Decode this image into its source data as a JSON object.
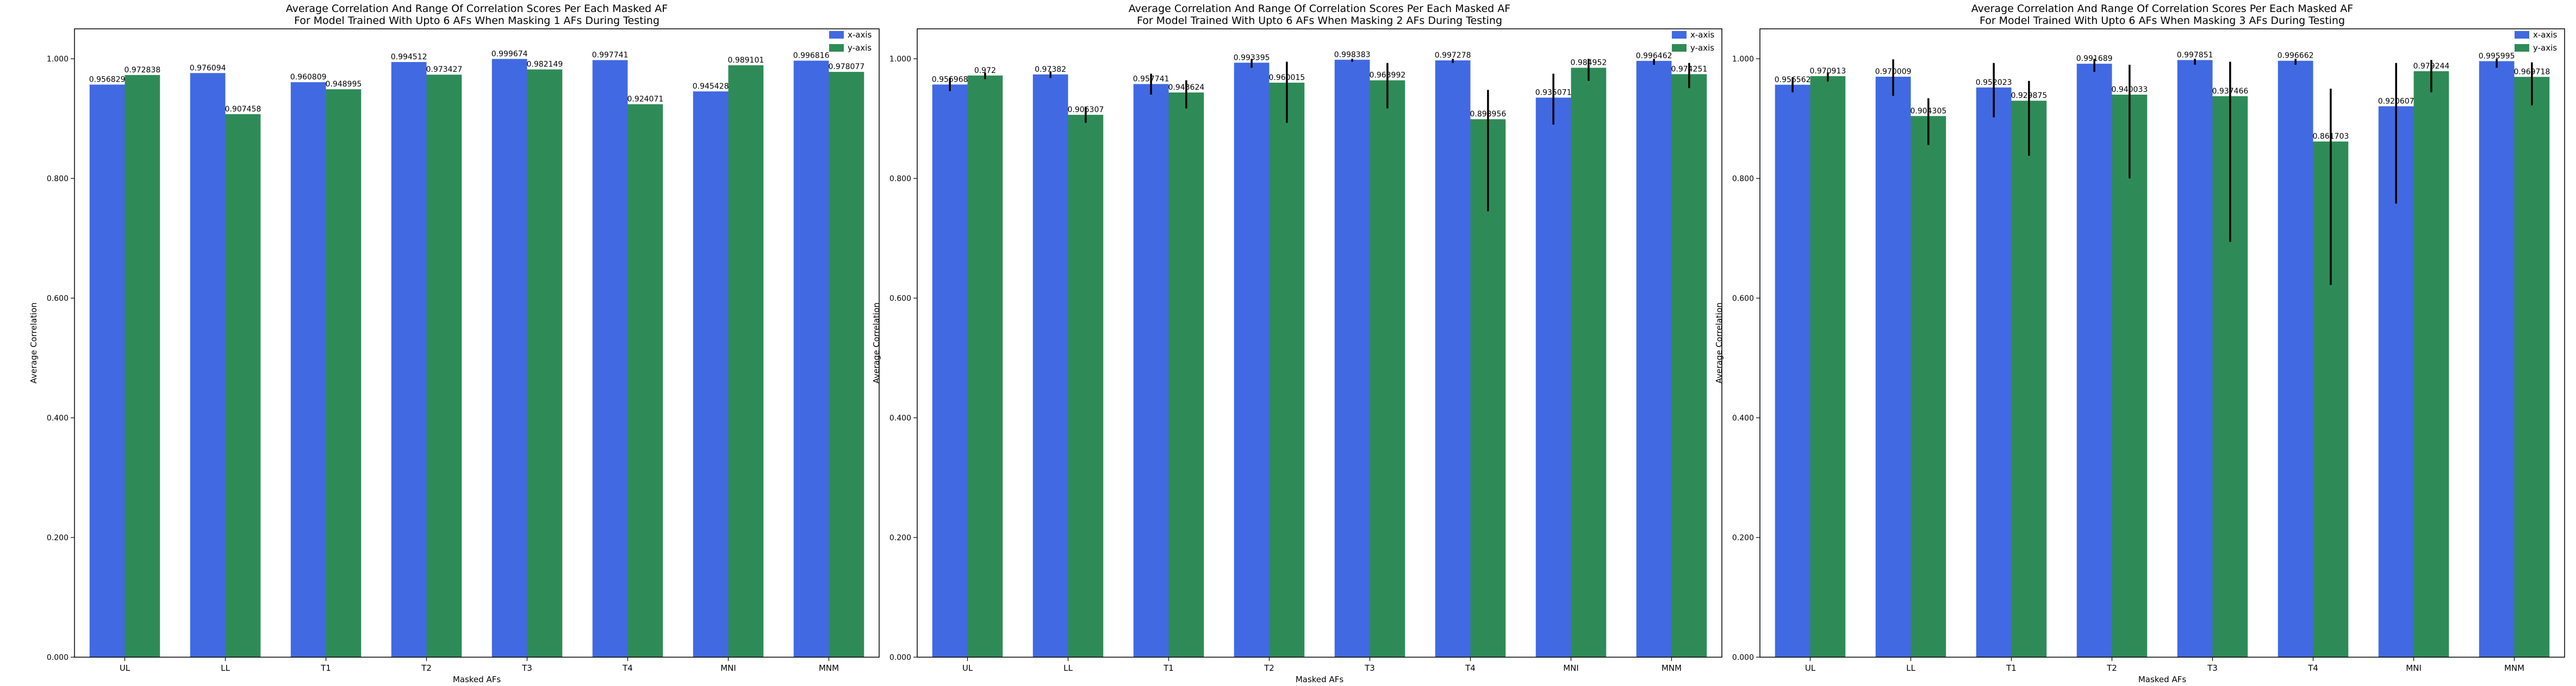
{
  "chart_data": [
    {
      "type": "bar",
      "title_line1": "Average Correlation And Range Of Correlation Scores Per Each Masked AF",
      "title_line2": "For Model Trained With Upto 6 AFs When Masking 1 AFs During Testing",
      "xlabel": "Masked AFs",
      "ylabel": "Average Correlation",
      "ylim": [
        0,
        1.05
      ],
      "yticks": [
        "0.000",
        "0.200",
        "0.400",
        "0.600",
        "0.800",
        "1.000"
      ],
      "ytick_values": [
        0,
        0.2,
        0.4,
        0.6,
        0.8,
        1.0
      ],
      "legend_position": "top-right",
      "categories": [
        "UL",
        "LL",
        "T1",
        "T2",
        "T3",
        "T4",
        "MNI",
        "MNM"
      ],
      "series": [
        {
          "name": "x-axis",
          "color": "#4169e1",
          "values": [
            0.956829,
            0.976094,
            0.960809,
            0.994512,
            0.999674,
            0.997741,
            0.945428,
            0.996816
          ],
          "labels": [
            "0.956829",
            "0.976094",
            "0.960809",
            "0.994512",
            "0.999674",
            "0.997741",
            "0.945428",
            "0.996816"
          ],
          "err_low": [
            0.956829,
            0.976094,
            0.960809,
            0.994512,
            0.999674,
            0.997741,
            0.945428,
            0.996816
          ],
          "err_high": [
            0.956829,
            0.976094,
            0.960809,
            0.994512,
            0.999674,
            0.997741,
            0.945428,
            0.996816
          ]
        },
        {
          "name": "y-axis",
          "color": "#2e8b57",
          "values": [
            0.972838,
            0.907458,
            0.948995,
            0.973427,
            0.982149,
            0.924071,
            0.989101,
            0.978077
          ],
          "labels": [
            "0.972838",
            "0.907458",
            "0.948995",
            "0.973427",
            "0.982149",
            "0.924071",
            "0.989101",
            "0.978077"
          ],
          "err_low": [
            0.972838,
            0.907458,
            0.948995,
            0.973427,
            0.982149,
            0.924071,
            0.989101,
            0.978077
          ],
          "err_high": [
            0.972838,
            0.907458,
            0.948995,
            0.973427,
            0.982149,
            0.924071,
            0.989101,
            0.978077
          ]
        }
      ]
    },
    {
      "type": "bar",
      "title_line1": "Average Correlation And Range Of Correlation Scores Per Each Masked AF",
      "title_line2": "For Model Trained With Upto 6 AFs When Masking 2 AFs During Testing",
      "xlabel": "Masked AFs",
      "ylabel": "Average Correlation",
      "ylim": [
        0,
        1.05
      ],
      "yticks": [
        "0.000",
        "0.200",
        "0.400",
        "0.600",
        "0.800",
        "1.000"
      ],
      "ytick_values": [
        0,
        0.2,
        0.4,
        0.6,
        0.8,
        1.0
      ],
      "legend_position": "top-right",
      "categories": [
        "UL",
        "LL",
        "T1",
        "T2",
        "T3",
        "T4",
        "MNI",
        "MNM"
      ],
      "series": [
        {
          "name": "x-axis",
          "color": "#4169e1",
          "values": [
            0.956968,
            0.97382,
            0.957741,
            0.993395,
            0.998383,
            0.997278,
            0.935071,
            0.996462
          ],
          "labels": [
            "0.956968",
            "0.97382",
            "0.957741",
            "0.993395",
            "0.998383",
            "0.997278",
            "0.935071",
            "0.996462"
          ],
          "err_low": [
            0.946,
            0.968,
            0.94,
            0.985,
            0.995,
            0.993,
            0.89,
            0.99
          ],
          "err_high": [
            0.968,
            0.979,
            0.975,
            1.0,
            1.0,
            1.0,
            0.975,
            1.0
          ]
        },
        {
          "name": "y-axis",
          "color": "#2e8b57",
          "values": [
            0.972,
            0.906307,
            0.943624,
            0.960015,
            0.963992,
            0.898956,
            0.984952,
            0.974251
          ],
          "labels": [
            "0.972",
            "0.906307",
            "0.943624",
            "0.960015",
            "0.963992",
            "0.898956",
            "0.984952",
            "0.974251"
          ],
          "err_low": [
            0.966,
            0.893,
            0.917,
            0.893,
            0.917,
            0.745,
            0.963,
            0.951
          ],
          "err_high": [
            0.977,
            0.92,
            0.964,
            0.995,
            0.993,
            0.948,
            1.0,
            0.993
          ]
        }
      ]
    },
    {
      "type": "bar",
      "title_line1": "Average Correlation And Range Of Correlation Scores Per Each Masked AF",
      "title_line2": "For Model Trained With Upto 6 AFs When Masking 3 AFs During Testing",
      "xlabel": "Masked AFs",
      "ylabel": "Average Correlation",
      "ylim": [
        0,
        1.05
      ],
      "yticks": [
        "0.000",
        "0.200",
        "0.400",
        "0.600",
        "0.800",
        "1.000"
      ],
      "ytick_values": [
        0,
        0.2,
        0.4,
        0.6,
        0.8,
        1.0
      ],
      "legend_position": "top-right",
      "categories": [
        "UL",
        "LL",
        "T1",
        "T2",
        "T3",
        "T4",
        "MNI",
        "MNM"
      ],
      "series": [
        {
          "name": "x-axis",
          "color": "#4169e1",
          "values": [
            0.956562,
            0.970009,
            0.952023,
            0.991689,
            0.997851,
            0.996662,
            0.920607,
            0.995995
          ],
          "labels": [
            "0.956562",
            "0.970009",
            "0.952023",
            "0.991689",
            "0.997851",
            "0.996662",
            "0.920607",
            "0.995995"
          ],
          "err_low": [
            0.944,
            0.938,
            0.902,
            0.978,
            0.99,
            0.99,
            0.758,
            0.985
          ],
          "err_high": [
            0.969,
            0.999,
            0.993,
            1.0,
            1.0,
            1.0,
            0.993,
            1.0
          ]
        },
        {
          "name": "y-axis",
          "color": "#2e8b57",
          "values": [
            0.970913,
            0.904305,
            0.929875,
            0.940033,
            0.937466,
            0.861703,
            0.979244,
            0.969718
          ],
          "labels": [
            "0.970913",
            "0.904305",
            "0.929875",
            "0.940033",
            "0.937466",
            "0.861703",
            "0.979244",
            "0.969718"
          ],
          "err_low": [
            0.962,
            0.856,
            0.838,
            0.8,
            0.694,
            0.622,
            0.944,
            0.922
          ],
          "err_high": [
            0.977,
            0.934,
            0.963,
            0.99,
            0.995,
            0.95,
            0.998,
            0.994
          ]
        }
      ]
    }
  ]
}
